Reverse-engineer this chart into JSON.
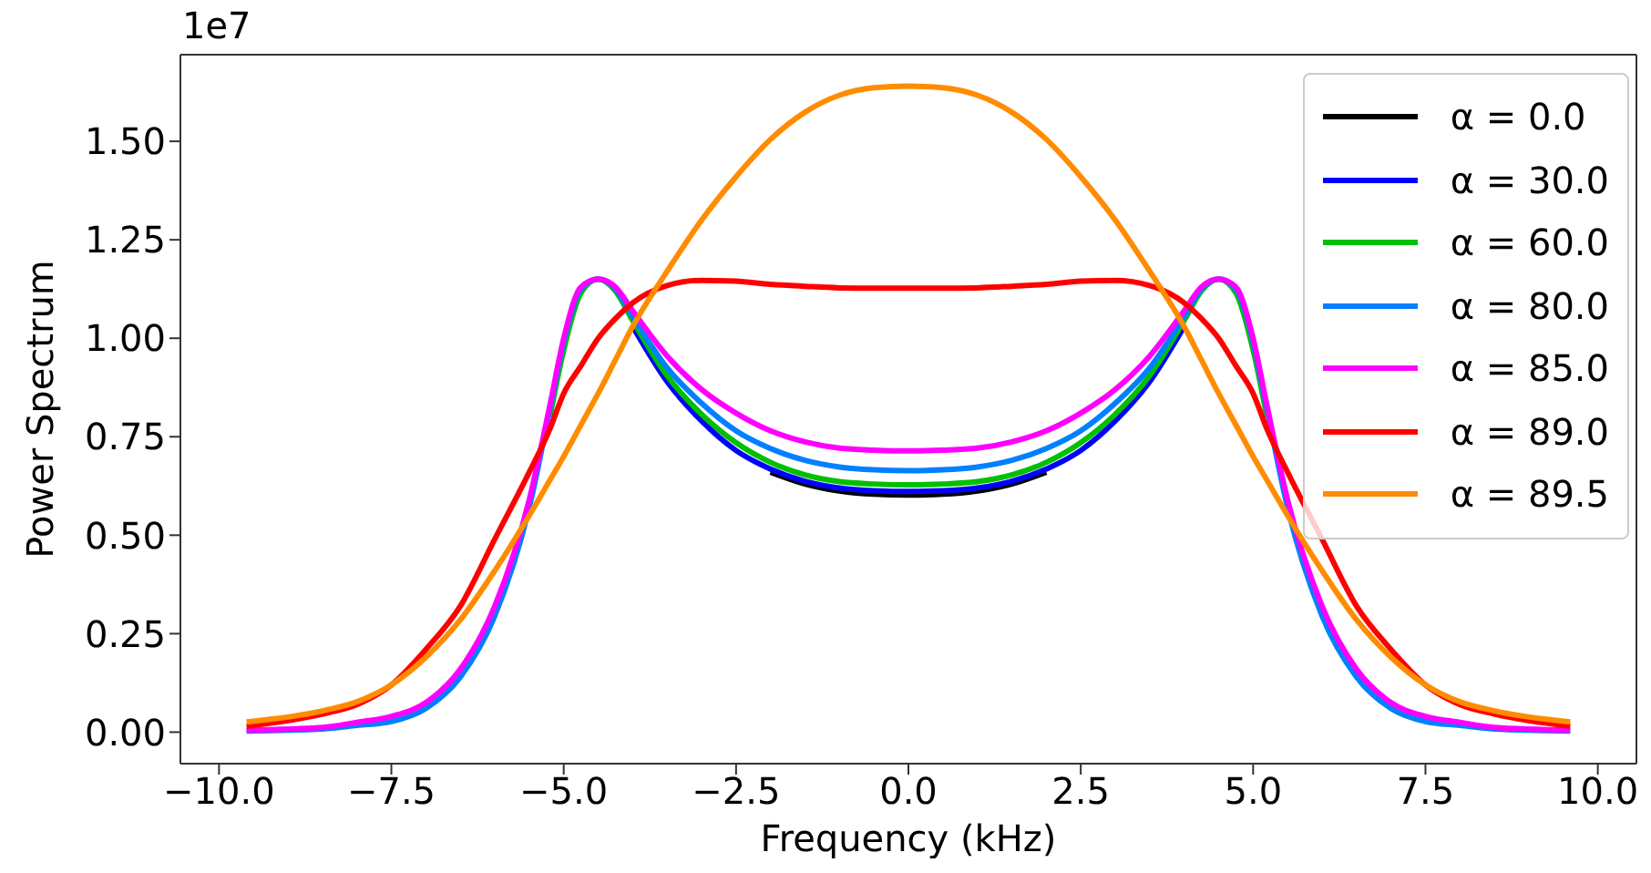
{
  "chart_data": {
    "type": "line",
    "xlabel": "Frequency (kHz)",
    "ylabel": "Power Spectrum",
    "annotations": [
      "1e7"
    ],
    "x": [
      -9.6,
      -8.5,
      -8,
      -7.5,
      -7,
      -6.5,
      -6,
      -5.5,
      -5.2,
      -5,
      -4.75,
      -4.5,
      -4.25,
      -4,
      -3.5,
      -3,
      -2.5,
      -2,
      -1.5,
      -1,
      -0.5,
      0,
      0.5,
      1,
      1.5,
      2,
      2.5,
      3,
      3.5,
      4,
      4.25,
      4.5,
      4.75,
      5,
      5.2,
      5.5,
      6,
      6.5,
      7,
      7.5,
      8,
      8.5,
      9.6
    ],
    "series": [
      {
        "name": "α = 0.0",
        "color": "#000000",
        "values": [
          null,
          null,
          null,
          null,
          null,
          null,
          null,
          null,
          null,
          null,
          null,
          null,
          null,
          null,
          null,
          null,
          null,
          0.66,
          0.63,
          0.612,
          0.604,
          0.602,
          0.604,
          0.612,
          0.63,
          0.66,
          null,
          null,
          null,
          null,
          null,
          null,
          null,
          null,
          null,
          null,
          null,
          null,
          null,
          null,
          null,
          null,
          null
        ]
      },
      {
        "name": "α = 30.0",
        "color": "#0000ff",
        "values": [
          null,
          null,
          null,
          null,
          null,
          null,
          null,
          null,
          null,
          null,
          null,
          null,
          null,
          1.03,
          0.89,
          0.79,
          0.715,
          0.668,
          0.637,
          0.62,
          0.613,
          0.611,
          0.613,
          0.62,
          0.637,
          0.668,
          0.715,
          0.79,
          0.89,
          1.03,
          null,
          null,
          null,
          null,
          null,
          null,
          null,
          null,
          null,
          null,
          null,
          null,
          null
        ]
      },
      {
        "name": "α = 60.0",
        "color": "#00c000",
        "values": [
          null,
          null,
          null,
          null,
          null,
          null,
          null,
          null,
          0.8,
          0.97,
          1.115,
          1.15,
          1.12,
          1.045,
          0.905,
          0.807,
          0.735,
          0.685,
          0.653,
          0.636,
          0.63,
          0.628,
          0.63,
          0.636,
          0.653,
          0.685,
          0.735,
          0.807,
          0.905,
          1.045,
          1.12,
          1.15,
          1.115,
          0.97,
          0.8,
          null,
          null,
          null,
          null,
          null,
          null,
          null,
          null
        ]
      },
      {
        "name": "α = 80.0",
        "color": "#0080ff",
        "values": [
          0.003,
          0.008,
          0.017,
          0.027,
          0.06,
          0.14,
          0.295,
          0.57,
          0.82,
          0.99,
          1.125,
          1.15,
          1.125,
          1.055,
          0.925,
          0.835,
          0.765,
          0.72,
          0.69,
          0.673,
          0.666,
          0.664,
          0.666,
          0.673,
          0.69,
          0.72,
          0.765,
          0.835,
          0.925,
          1.055,
          1.125,
          1.15,
          1.125,
          0.99,
          0.82,
          0.57,
          0.295,
          0.14,
          0.06,
          0.027,
          0.017,
          0.008,
          0.003
        ]
      },
      {
        "name": "α = 85.0",
        "color": "#ff00ff",
        "values": [
          0.005,
          0.012,
          0.025,
          0.04,
          0.075,
          0.16,
          0.32,
          0.59,
          0.83,
          1.0,
          1.13,
          1.15,
          1.13,
          1.07,
          0.955,
          0.87,
          0.81,
          0.765,
          0.737,
          0.721,
          0.716,
          0.714,
          0.716,
          0.721,
          0.737,
          0.765,
          0.81,
          0.87,
          0.955,
          1.07,
          1.13,
          1.15,
          1.13,
          1.0,
          0.83,
          0.59,
          0.32,
          0.16,
          0.075,
          0.04,
          0.025,
          0.012,
          0.005
        ]
      },
      {
        "name": "α = 89.0",
        "color": "#ff0000",
        "values": [
          0.015,
          0.046,
          0.07,
          0.12,
          0.21,
          0.32,
          0.49,
          0.66,
          0.77,
          0.86,
          0.93,
          1.0,
          1.05,
          1.09,
          1.134,
          1.147,
          1.145,
          1.137,
          1.132,
          1.128,
          1.127,
          1.127,
          1.127,
          1.128,
          1.132,
          1.137,
          1.145,
          1.147,
          1.134,
          1.09,
          1.05,
          1.0,
          0.93,
          0.86,
          0.77,
          0.66,
          0.49,
          0.32,
          0.21,
          0.12,
          0.07,
          0.046,
          0.015
        ]
      },
      {
        "name": "α = 89.5",
        "color": "#ff8c00",
        "values": [
          0.026,
          0.054,
          0.077,
          0.12,
          0.19,
          0.285,
          0.41,
          0.55,
          0.64,
          0.7,
          0.78,
          0.86,
          0.945,
          1.03,
          1.17,
          1.3,
          1.41,
          1.505,
          1.574,
          1.617,
          1.636,
          1.64,
          1.636,
          1.617,
          1.574,
          1.505,
          1.41,
          1.3,
          1.17,
          1.03,
          0.945,
          0.86,
          0.78,
          0.7,
          0.64,
          0.55,
          0.41,
          0.285,
          0.19,
          0.12,
          0.077,
          0.054,
          0.026
        ]
      }
    ],
    "xlim": [
      -10.56,
      10.56
    ],
    "xticks": [
      {
        "value": -10,
        "label": "−10.0"
      },
      {
        "value": -7.5,
        "label": "−7.5"
      },
      {
        "value": -5,
        "label": "−5.0"
      },
      {
        "value": -2.5,
        "label": "−2.5"
      },
      {
        "value": 0,
        "label": "0.0"
      },
      {
        "value": 2.5,
        "label": "2.5"
      },
      {
        "value": 5,
        "label": "5.0"
      },
      {
        "value": 7.5,
        "label": "7.5"
      },
      {
        "value": 10,
        "label": "10.0"
      }
    ],
    "ylim": [
      -0.08,
      1.72
    ],
    "yticks": [
      {
        "value": 0,
        "label": "0.00"
      },
      {
        "value": 0.25,
        "label": "0.25"
      },
      {
        "value": 0.5,
        "label": "0.50"
      },
      {
        "value": 0.75,
        "label": "0.75"
      },
      {
        "value": 1,
        "label": "1.00"
      },
      {
        "value": 1.25,
        "label": "1.25"
      },
      {
        "value": 1.5,
        "label": "1.50"
      }
    ],
    "legend": "top right",
    "line_style": "solid",
    "marker": "none",
    "grid": false
  }
}
